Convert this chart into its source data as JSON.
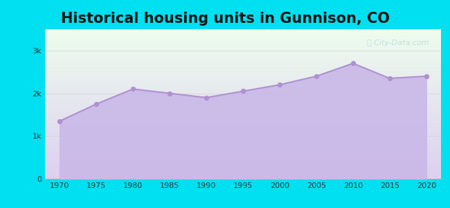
{
  "title": "Historical housing units in Gunnison, CO",
  "title_fontsize": 15,
  "background_color": "#00e0f0",
  "years": [
    1970,
    1975,
    1980,
    1985,
    1990,
    1995,
    2000,
    2005,
    2010,
    2015,
    2020
  ],
  "values": [
    1350,
    1750,
    2100,
    2000,
    1900,
    2050,
    2200,
    2400,
    2700,
    2350,
    2400
  ],
  "fill_color": "#c9b8e8",
  "fill_alpha": 0.9,
  "line_color": "#b090d0",
  "line_width": 1.5,
  "marker_color": "#b090d0",
  "marker_size": 18,
  "ytick_labels": [
    "0",
    "1k",
    "2k",
    "3k"
  ],
  "ytick_values": [
    0,
    1000,
    2000,
    3000
  ],
  "ylim": [
    0,
    3500
  ],
  "xlim": [
    1968,
    2022
  ],
  "xtick_values": [
    1970,
    1975,
    1980,
    1985,
    1990,
    1995,
    2000,
    2005,
    2010,
    2015,
    2020
  ],
  "watermark_text": "City-Data.com",
  "watermark_color": "#a0c8d0",
  "watermark_alpha": 0.55,
  "grid_color": "#cccccc",
  "grid_alpha": 0.6,
  "tick_fontsize": 8,
  "plot_bg_top_color": "#edfded",
  "plot_bg_bottom_color": "#ddd0f0"
}
